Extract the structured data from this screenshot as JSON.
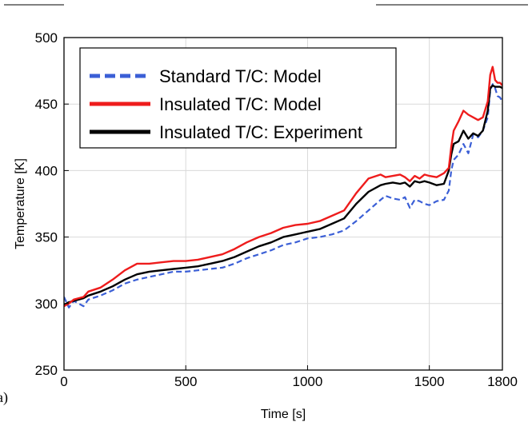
{
  "chart_data": {
    "type": "line",
    "panel_label": "a)",
    "xlabel": "Time [s]",
    "ylabel": "Temperature [K]",
    "xlim": [
      0,
      1800
    ],
    "ylim": [
      250,
      500
    ],
    "xticks": [
      0,
      500,
      1000,
      1500,
      1800
    ],
    "yticks": [
      250,
      300,
      350,
      400,
      450,
      500
    ],
    "grid": true,
    "legend_position": "top-left",
    "series": [
      {
        "name": "Standard T/C: Model",
        "color": "#3b5fd6",
        "style": "dashed",
        "x": [
          0,
          20,
          40,
          60,
          80,
          100,
          150,
          200,
          250,
          300,
          350,
          400,
          450,
          500,
          550,
          600,
          650,
          700,
          750,
          800,
          850,
          900,
          950,
          1000,
          1050,
          1100,
          1150,
          1200,
          1250,
          1300,
          1320,
          1350,
          1380,
          1400,
          1420,
          1440,
          1460,
          1480,
          1500,
          1530,
          1560,
          1580,
          1590,
          1600,
          1620,
          1640,
          1660,
          1680,
          1700,
          1720,
          1740,
          1750,
          1760,
          1770,
          1780,
          1790,
          1800
        ],
        "values": [
          305,
          297,
          302,
          300,
          298,
          303,
          306,
          310,
          315,
          318,
          320,
          322,
          324,
          324,
          325,
          326,
          327,
          330,
          334,
          337,
          340,
          344,
          346,
          349,
          350,
          352,
          355,
          362,
          370,
          378,
          381,
          379,
          378,
          380,
          372,
          378,
          377,
          375,
          374,
          377,
          378,
          385,
          400,
          408,
          412,
          420,
          413,
          427,
          425,
          430,
          440,
          460,
          465,
          462,
          456,
          455,
          452
        ]
      },
      {
        "name": "Insulated T/C: Model",
        "color": "#ee1c1c",
        "style": "solid",
        "x": [
          0,
          20,
          40,
          60,
          80,
          100,
          150,
          200,
          250,
          300,
          350,
          400,
          450,
          500,
          550,
          600,
          650,
          700,
          750,
          800,
          850,
          900,
          950,
          1000,
          1050,
          1100,
          1150,
          1200,
          1250,
          1300,
          1320,
          1350,
          1380,
          1400,
          1420,
          1440,
          1460,
          1480,
          1500,
          1530,
          1560,
          1580,
          1590,
          1600,
          1620,
          1640,
          1660,
          1680,
          1700,
          1720,
          1740,
          1750,
          1760,
          1770,
          1780,
          1790,
          1800
        ],
        "values": [
          298,
          300,
          303,
          304,
          305,
          309,
          312,
          318,
          325,
          330,
          330,
          331,
          332,
          332,
          333,
          335,
          337,
          341,
          346,
          350,
          353,
          357,
          359,
          360,
          362,
          366,
          370,
          383,
          394,
          397,
          395,
          396,
          397,
          395,
          392,
          396,
          394,
          397,
          396,
          395,
          398,
          402,
          418,
          430,
          437,
          445,
          442,
          440,
          438,
          440,
          452,
          472,
          478,
          468,
          466,
          466,
          464
        ]
      },
      {
        "name": "Insulated T/C: Experiment",
        "color": "#000000",
        "style": "solid",
        "x": [
          0,
          20,
          40,
          60,
          80,
          100,
          150,
          200,
          250,
          300,
          350,
          400,
          450,
          500,
          550,
          600,
          650,
          700,
          750,
          800,
          850,
          900,
          950,
          1000,
          1050,
          1100,
          1150,
          1200,
          1250,
          1300,
          1320,
          1350,
          1380,
          1400,
          1420,
          1440,
          1460,
          1480,
          1500,
          1530,
          1560,
          1580,
          1590,
          1600,
          1620,
          1640,
          1660,
          1680,
          1700,
          1720,
          1740,
          1750,
          1760,
          1770,
          1780,
          1790,
          1800
        ],
        "values": [
          299,
          301,
          302,
          303,
          304,
          306,
          309,
          313,
          318,
          322,
          324,
          325,
          326,
          327,
          328,
          330,
          332,
          335,
          339,
          343,
          346,
          350,
          352,
          354,
          356,
          360,
          364,
          375,
          384,
          389,
          390,
          391,
          390,
          391,
          388,
          392,
          391,
          392,
          391,
          389,
          390,
          400,
          412,
          420,
          422,
          430,
          424,
          428,
          426,
          430,
          445,
          462,
          464,
          463,
          463,
          463,
          462
        ]
      }
    ]
  }
}
